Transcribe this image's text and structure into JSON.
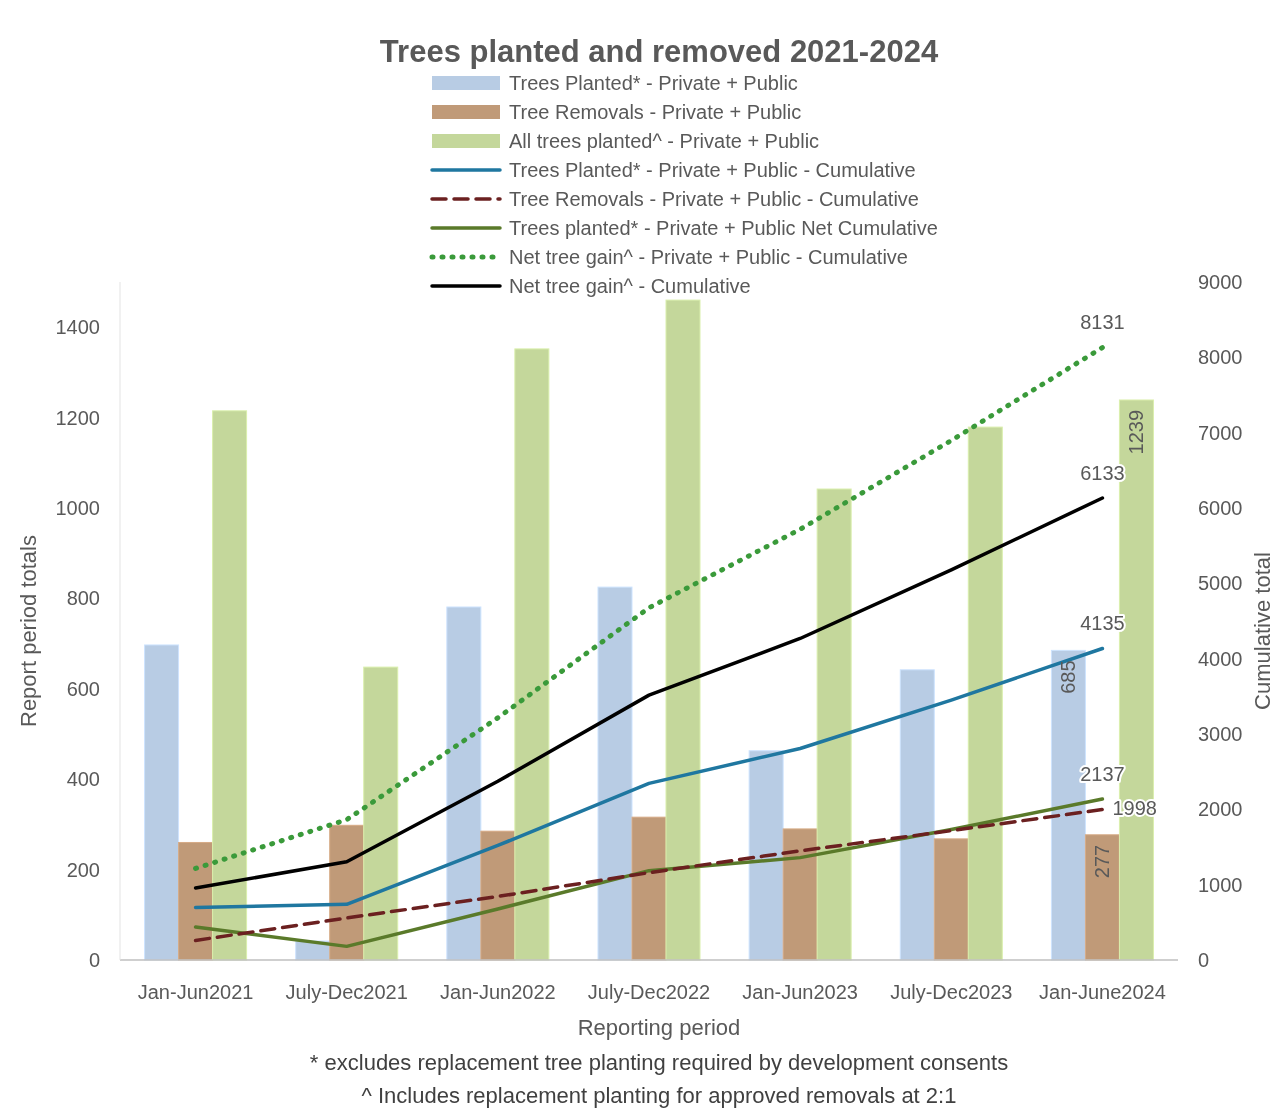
{
  "chart_data": {
    "type": "bar",
    "title": "Trees planted and removed 2021-2024",
    "xlabel": "Reporting period",
    "ylabel": "Report period totals",
    "y2label": "Cumulative total",
    "categories": [
      "Jan-Jun2021",
      "July-Dec2021",
      "Jan-Jun2022",
      "July-Dec2022",
      "Jan-Jun2023",
      "July-Dec2023",
      "Jan-June2024"
    ],
    "ylim": [
      0,
      1500
    ],
    "yticks": [
      0,
      200,
      400,
      600,
      800,
      1000,
      1200,
      1400
    ],
    "y2lim": [
      0,
      9000
    ],
    "y2ticks": [
      0,
      1000,
      2000,
      3000,
      4000,
      5000,
      6000,
      7000,
      8000,
      9000
    ],
    "grid": false,
    "legend": "top",
    "marker": "none",
    "series": [
      {
        "name": "Trees Planted* - Private + Public",
        "color": "#b8cce4",
        "values": [
          697,
          42,
          781,
          825,
          463,
          642,
          685
        ],
        "value_labels": [
          null,
          null,
          null,
          null,
          null,
          null,
          "685"
        ]
      },
      {
        "name": "Tree Removals - Private + Public",
        "color": "#c09a78",
        "values": [
          260,
          298,
          285,
          316,
          290,
          268,
          277
        ],
        "value_labels": [
          null,
          null,
          null,
          null,
          null,
          null,
          "277"
        ]
      },
      {
        "name": "All trees planted^ - Private + Public",
        "color": "#c4d79b",
        "values": [
          1215,
          648,
          1352,
          1460,
          1042,
          1179,
          1239
        ],
        "value_labels": [
          null,
          null,
          null,
          null,
          null,
          null,
          "1239"
        ]
      },
      {
        "name": "Trees Planted* - Private + Public - Cumulative",
        "type": "line",
        "axis": "y2",
        "color": "#1f77a0",
        "line_style": "solid",
        "values": [
          697,
          739,
          1520,
          2345,
          2808,
          3450,
          4135
        ],
        "value_labels": [
          null,
          null,
          null,
          null,
          null,
          null,
          "4135"
        ]
      },
      {
        "name": "Tree Removals - Private + Public  - Cumulative",
        "type": "line",
        "axis": "y2",
        "color": "#6b2020",
        "line_style": "dashed",
        "values": [
          260,
          558,
          843,
          1159,
          1449,
          1717,
          1998
        ],
        "value_labels": [
          null,
          null,
          null,
          null,
          null,
          null,
          "1998"
        ]
      },
      {
        "name": "Trees planted* - Private + Public Net Cumulative",
        "type": "line",
        "axis": "y2",
        "color": "#5a7a2a",
        "line_style": "solid",
        "values": [
          437,
          181,
          677,
          1186,
          1359,
          1733,
          2137
        ],
        "value_labels": [
          null,
          null,
          null,
          null,
          null,
          null,
          "2137"
        ]
      },
      {
        "name": "Net tree gain^ - Private + Public - Cumulative",
        "type": "line",
        "axis": "y2",
        "color": "#3a9a3a",
        "line_style": "dotted",
        "values": [
          1215,
          1863,
          3215,
          4675,
          5717,
          6896,
          8131
        ],
        "value_labels": [
          null,
          null,
          null,
          null,
          null,
          null,
          "8131"
        ]
      },
      {
        "name": "Net tree gain^ - Cumulative",
        "type": "line",
        "axis": "y2",
        "color": "#000000",
        "line_style": "solid",
        "values": [
          955,
          1305,
          2372,
          3516,
          4268,
          5179,
          6133
        ],
        "value_labels": [
          null,
          null,
          null,
          null,
          null,
          null,
          "6133"
        ]
      }
    ],
    "annotations": [
      "* excludes replacement tree planting required by development consents",
      "^ Includes replacement planting for approved removals at 2:1"
    ]
  }
}
